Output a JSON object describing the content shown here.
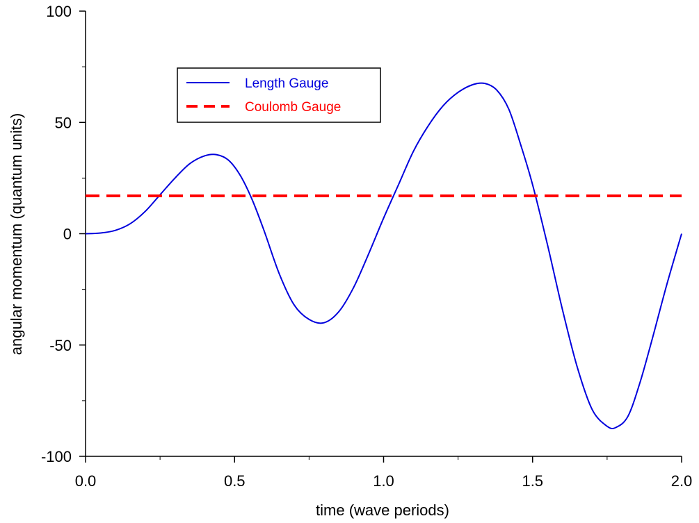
{
  "chart_data": {
    "type": "line",
    "title": "",
    "xlabel": "time (wave periods)",
    "ylabel": "angular momentum (quantum units)",
    "xlim": [
      0.0,
      2.0
    ],
    "ylim": [
      -100,
      100
    ],
    "x_ticks": [
      "0.0",
      "0.5",
      "1.0",
      "1.5",
      "2.0"
    ],
    "y_ticks": [
      "100",
      "50",
      "0",
      "-50",
      "-100"
    ],
    "grid": false,
    "legend_position": "top-left",
    "series": [
      {
        "name": "Length Gauge",
        "color": "#0000dd",
        "style": "solid",
        "x": [
          0.0,
          0.05,
          0.1,
          0.15,
          0.2,
          0.25,
          0.3,
          0.35,
          0.4,
          0.44,
          0.48,
          0.52,
          0.56,
          0.6,
          0.65,
          0.7,
          0.75,
          0.8,
          0.85,
          0.9,
          0.95,
          1.0,
          1.05,
          1.1,
          1.15,
          1.2,
          1.25,
          1.3,
          1.34,
          1.38,
          1.42,
          1.46,
          1.5,
          1.55,
          1.6,
          1.65,
          1.7,
          1.75,
          1.78,
          1.82,
          1.86,
          1.9,
          1.95,
          2.0
        ],
        "y": [
          0,
          0.3,
          1.5,
          4.5,
          10,
          17.5,
          25,
          31.5,
          35,
          35.5,
          33,
          26,
          15,
          1,
          -18,
          -32,
          -38.5,
          -40,
          -35,
          -24,
          -9,
          7,
          22,
          37,
          48.5,
          57.5,
          63.5,
          67,
          67.5,
          64.5,
          56,
          40,
          22,
          -5,
          -34,
          -60,
          -79,
          -86.5,
          -87,
          -82,
          -67,
          -48,
          -23,
          0
        ]
      },
      {
        "name": "Coulomb Gauge",
        "color": "#ff0000",
        "style": "dashed",
        "x": [
          0.0,
          2.0
        ],
        "y": [
          17,
          17
        ]
      }
    ]
  }
}
